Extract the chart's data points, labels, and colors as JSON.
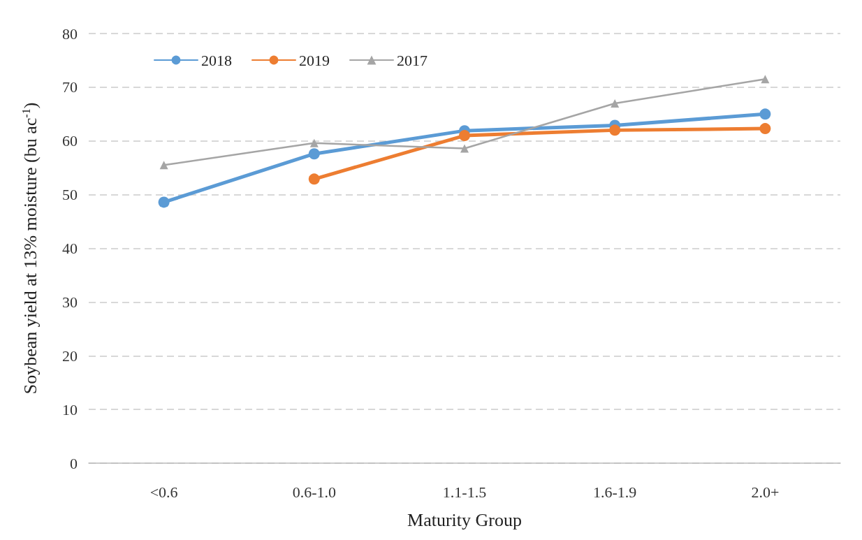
{
  "chart_data": {
    "type": "line",
    "xlabel": "Maturity Group",
    "ylabel": "Soybean yield at 13% moisture (bu ac$^{-1}$)",
    "categories": [
      "<0.6",
      "0.6-1.0",
      "1.1-1.5",
      "1.6-1.9",
      "2.0+"
    ],
    "series": [
      {
        "name": "2018",
        "color": "#5b9bd5",
        "marker": "circle",
        "values": [
          48.6,
          57.6,
          61.9,
          62.9,
          65.0
        ]
      },
      {
        "name": "2019",
        "color": "#ed7d31",
        "marker": "circle",
        "values": [
          null,
          52.9,
          61.0,
          62.0,
          62.3
        ]
      },
      {
        "name": "2017",
        "color": "#a5a5a5",
        "marker": "triangle",
        "values": [
          55.5,
          59.6,
          58.6,
          67.0,
          71.5
        ]
      }
    ],
    "ylim": [
      0,
      80
    ],
    "yticks": [
      0,
      10,
      20,
      30,
      40,
      50,
      60,
      70,
      80
    ],
    "grid": "y",
    "legend": "top left"
  }
}
